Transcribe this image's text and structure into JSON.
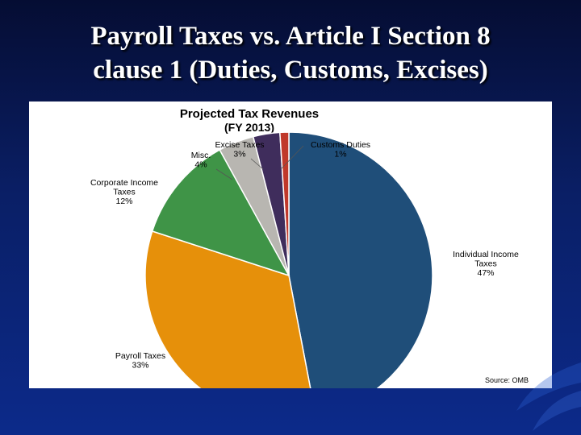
{
  "slide": {
    "title_line1": "Payroll Taxes vs. Article I Section 8",
    "title_line2": "clause 1 (Duties, Customs, Excises)"
  },
  "chart_data": {
    "type": "pie",
    "title": "Projected Tax Revenues",
    "subtitle": "(FY 2013)",
    "source": "Source: OMB",
    "slices": [
      {
        "name": "Individual  Income Taxes",
        "label_lines": [
          "Individual  Income",
          "Taxes"
        ],
        "value": 47,
        "percent_label": "47%",
        "color": "#1f4e79"
      },
      {
        "name": "Payroll Taxes",
        "label_lines": [
          "Payroll Taxes"
        ],
        "value": 33,
        "percent_label": "33%",
        "color": "#e6900a"
      },
      {
        "name": "Corporate  Income Taxes",
        "label_lines": [
          "Corporate  Income",
          "Taxes"
        ],
        "value": 12,
        "percent_label": "12%",
        "color": "#3f9447"
      },
      {
        "name": "Misc.",
        "label_lines": [
          "Misc."
        ],
        "value": 4,
        "percent_label": "4%",
        "color": "#b8b6b1"
      },
      {
        "name": "Excise Taxes",
        "label_lines": [
          "Excise Taxes"
        ],
        "value": 3,
        "percent_label": "3%",
        "color": "#3f2d5c"
      },
      {
        "name": "Customs Duties",
        "label_lines": [
          "Customs Duties"
        ],
        "value": 1,
        "percent_label": "1%",
        "color": "#c0392b"
      }
    ]
  }
}
